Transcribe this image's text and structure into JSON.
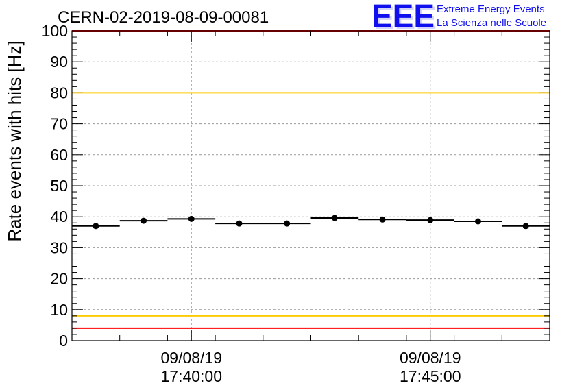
{
  "chart_data": {
    "type": "scatter",
    "title": "CERN-02-2019-08-09-00081",
    "ylabel": "Rate events with hits [Hz]",
    "xlabel": "",
    "ylim": [
      0,
      100
    ],
    "y_ticks": [
      "0",
      "10",
      "20",
      "30",
      "40",
      "50",
      "60",
      "70",
      "80",
      "90",
      "100"
    ],
    "x_range_min": [
      0,
      10
    ],
    "x_ticks": [
      {
        "x_min": 2.5,
        "date": "09/08/19",
        "time": "17:40:00"
      },
      {
        "x_min": 7.5,
        "date": "09/08/19",
        "time": "17:45:00"
      }
    ],
    "grid": true,
    "series": [
      {
        "x_min": [
          0.5,
          1.5,
          2.5,
          3.5,
          4.5,
          5.5,
          6.5,
          7.5,
          8.5,
          9.5
        ],
        "bin_width_min": 1,
        "values": [
          37.0,
          38.7,
          39.3,
          37.8,
          37.8,
          39.6,
          39.1,
          38.9,
          38.5,
          37.0
        ]
      }
    ],
    "reference_lines": [
      {
        "y": 100,
        "color": "#ff0000"
      },
      {
        "y": 80,
        "color": "#ffcc00"
      },
      {
        "y": 8,
        "color": "#ffcc00"
      },
      {
        "y": 4,
        "color": "#ff0000"
      }
    ]
  },
  "logo": {
    "text": "EEE",
    "line1": "Extreme Energy Events",
    "line2": "La Scienza nelle Scuole",
    "color": "#1010ee"
  }
}
